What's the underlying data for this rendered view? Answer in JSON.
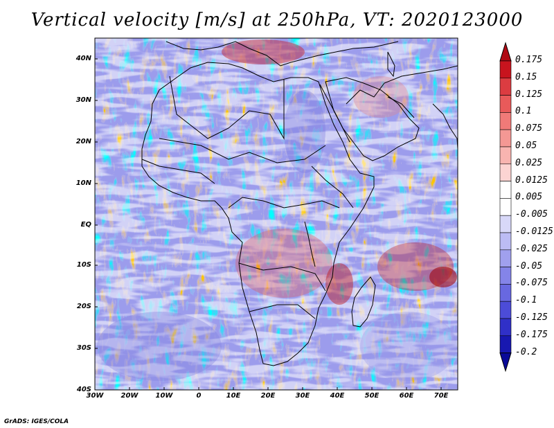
{
  "title": "Vertical velocity [m/s] at 250hPa, VT: 2020123000",
  "credit": "GrADS: IGES/COLA",
  "lat_labels": [
    "40N",
    "30N",
    "20N",
    "10N",
    "EQ",
    "10S",
    "20S",
    "30S",
    "40S"
  ],
  "lon_labels": [
    "30W",
    "20W",
    "10W",
    "0",
    "10E",
    "20E",
    "30E",
    "40E",
    "50E",
    "60E",
    "70E"
  ],
  "colorbar": {
    "labels": [
      "0.175",
      "0.15",
      "0.125",
      "0.1",
      "0.075",
      "0.05",
      "0.025",
      "0.0125",
      "0.005",
      "-0.005",
      "-0.0125",
      "-0.025",
      "-0.05",
      "-0.075",
      "-0.1",
      "-0.125",
      "-0.175",
      "-0.2"
    ],
    "colors": [
      "#b00a14",
      "#c8141e",
      "#dc3c41",
      "#e85a5a",
      "#f07a78",
      "#f49894",
      "#f8b4b0",
      "#fcd4d2",
      "#ffffff",
      "#ffffff",
      "#d8d8f8",
      "#bcbcf4",
      "#a0a0ee",
      "#8484e8",
      "#6868e0",
      "#4c4cd8",
      "#3030c8",
      "#1818b0",
      "#0a0a98"
    ]
  },
  "chart_data": {
    "type": "heatmap",
    "title": "Vertical velocity [m/s] at 250hPa, VT: 2020123000",
    "variable": "Vertical velocity",
    "units": "m/s",
    "level": "250hPa",
    "valid_time": "2020123000",
    "lon_range": [
      -30,
      75
    ],
    "lat_range": [
      -40,
      45
    ],
    "color_levels": [
      -0.2,
      -0.175,
      -0.125,
      -0.1,
      -0.075,
      -0.05,
      -0.025,
      -0.0125,
      -0.005,
      0.005,
      0.0125,
      0.025,
      0.05,
      0.075,
      0.1,
      0.125,
      0.15,
      0.175
    ]
  }
}
